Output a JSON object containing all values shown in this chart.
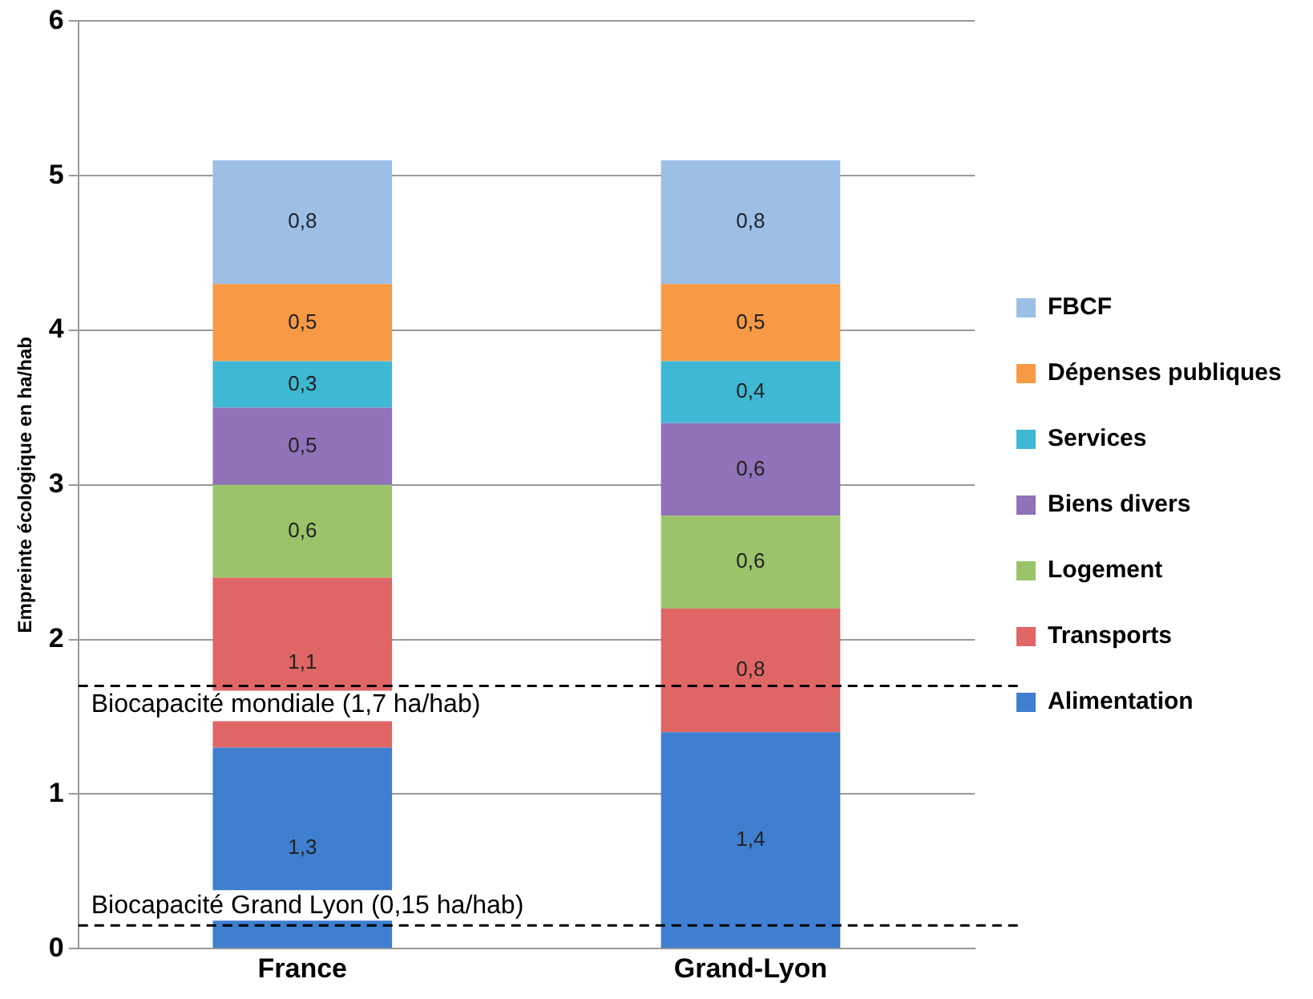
{
  "chart_data": {
    "type": "bar",
    "stacked": true,
    "categories": [
      "France",
      "Grand-Lyon"
    ],
    "ylabel": "Empreinte écologique en ha/hab",
    "ylim": [
      0,
      6
    ],
    "yticks": [
      0,
      1,
      2,
      3,
      4,
      5,
      6
    ],
    "grid": "y",
    "legend": "right",
    "series": [
      {
        "name": "Alimentation",
        "color": "#3f7fcf",
        "values": [
          1.3,
          1.4
        ],
        "value_labels": [
          "1,3",
          "1,4"
        ]
      },
      {
        "name": "Transports",
        "color": "#e06666",
        "values": [
          1.1,
          0.8
        ],
        "value_labels": [
          "1,1",
          "0,8"
        ]
      },
      {
        "name": "Logement",
        "color": "#9bc46a",
        "values": [
          0.6,
          0.6
        ],
        "value_labels": [
          "0,6",
          "0,6"
        ]
      },
      {
        "name": "Biens divers",
        "color": "#8f72b8",
        "values": [
          0.5,
          0.6
        ],
        "value_labels": [
          "0,5",
          "0,6"
        ]
      },
      {
        "name": "Services",
        "color": "#3fb8d4",
        "values": [
          0.3,
          0.4
        ],
        "value_labels": [
          "0,3",
          "0,4"
        ]
      },
      {
        "name": "Dépenses publiques",
        "color": "#f79a46",
        "values": [
          0.5,
          0.5
        ],
        "value_labels": [
          "0,5",
          "0,5"
        ]
      },
      {
        "name": "FBCF",
        "color": "#9cbfe6",
        "values": [
          0.8,
          0.8
        ],
        "value_labels": [
          "0,8",
          "0,8"
        ]
      }
    ],
    "ref_lines": [
      {
        "axis": "y",
        "value": 1.7,
        "label": "Biocapacité mondiale (1,7 ha/hab)",
        "color": "#000000",
        "line_style": "dashed"
      },
      {
        "axis": "y",
        "value": 0.15,
        "label": "Biocapacité Grand Lyon (0,15 ha/hab)",
        "color": "#000000",
        "line_style": "dashed"
      }
    ]
  }
}
